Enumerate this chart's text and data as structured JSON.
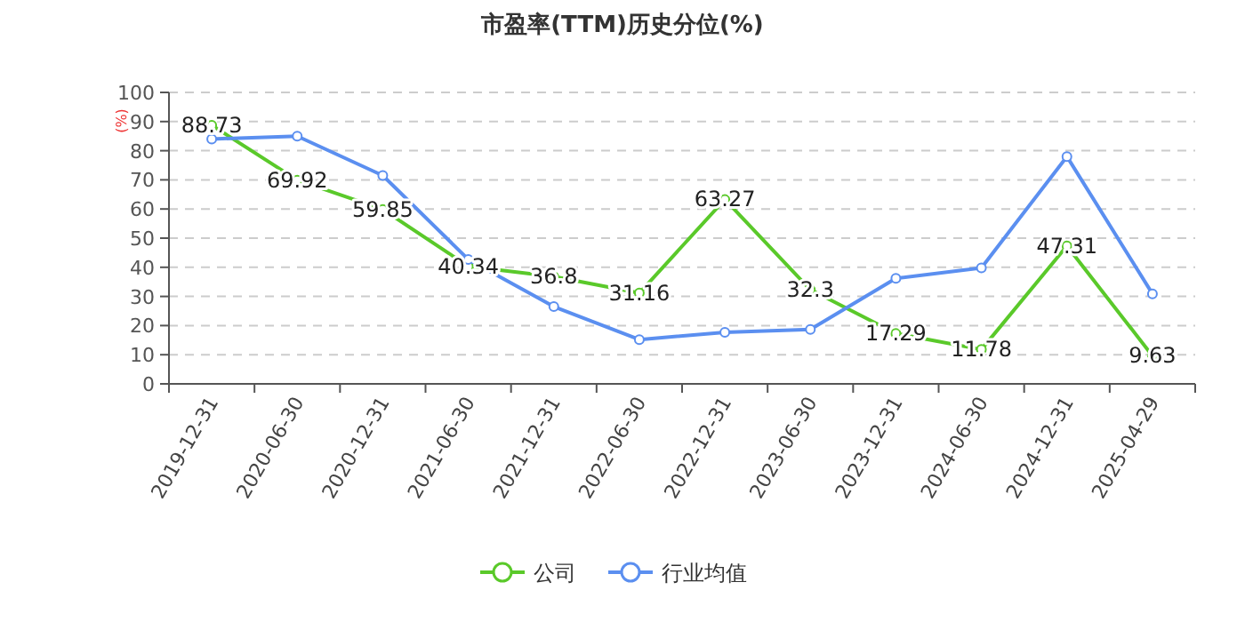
{
  "chart_data": {
    "type": "line",
    "title": "市盈率(TTM)历史分位(%)",
    "ylabel": "(%)",
    "categories": [
      "2019-12-31",
      "2020-06-30",
      "2020-12-31",
      "2021-06-30",
      "2021-12-31",
      "2022-06-30",
      "2022-12-31",
      "2023-06-30",
      "2023-12-31",
      "2024-06-30",
      "2024-12-31",
      "2025-04-29"
    ],
    "series": [
      {
        "name": "公司",
        "color": "#5ac92a",
        "values": [
          88.73,
          69.92,
          59.85,
          40.34,
          36.8,
          31.16,
          63.27,
          32.3,
          17.29,
          11.78,
          47.31,
          9.63
        ],
        "value_labels": [
          "88.73",
          "69.92",
          "59.85",
          "40.34",
          "36.8",
          "31.16",
          "63.27",
          "32.3",
          "17.29",
          "11.78",
          "47.31",
          "9.63"
        ]
      },
      {
        "name": "行业均值",
        "color": "#5b8ff0",
        "values": [
          84,
          85,
          71.5,
          42.7,
          26.5,
          15.2,
          17.7,
          18.7,
          36.2,
          39.8,
          78,
          30.9
        ]
      }
    ],
    "ylim": [
      0,
      100
    ],
    "yticks": [
      0,
      10,
      20,
      30,
      40,
      50,
      60,
      70,
      80,
      90,
      100
    ],
    "grid": "y",
    "legend": "bottom",
    "marker": "circle",
    "line_style": "solid"
  }
}
